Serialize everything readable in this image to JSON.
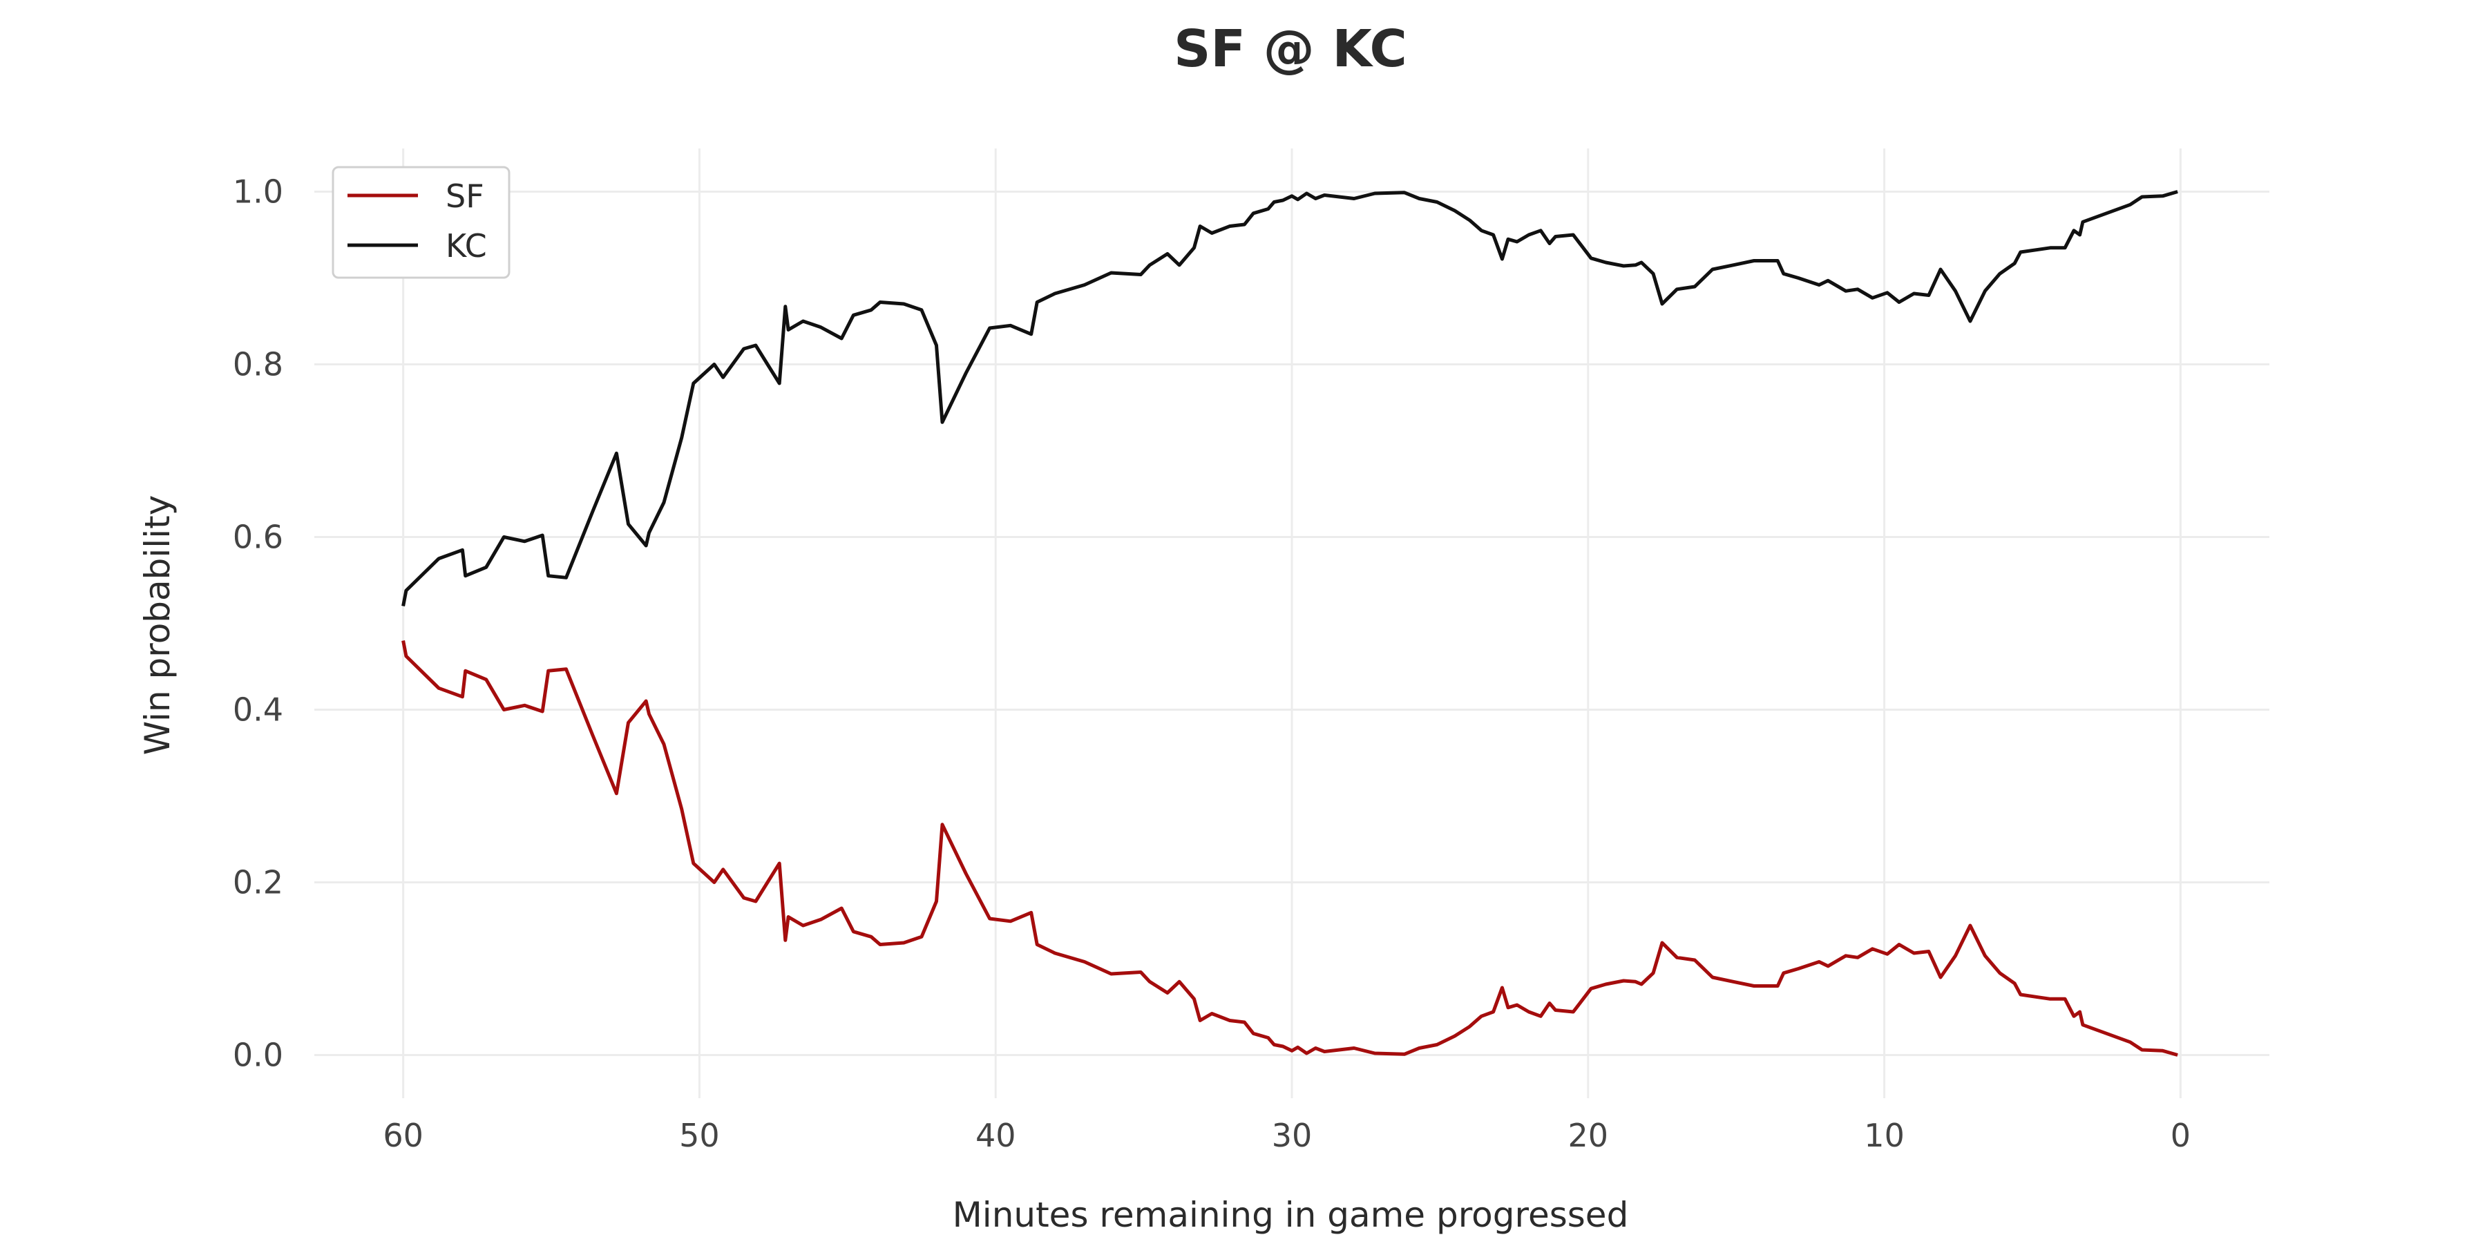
{
  "chart_data": {
    "type": "line",
    "title": "SF @ KC",
    "xlabel": "Minutes remaining in game progressed",
    "ylabel": "Win probability",
    "xlim": [
      63,
      -3
    ],
    "ylim": [
      -0.05,
      1.05
    ],
    "x_ticks": [
      60,
      50,
      40,
      30,
      20,
      10,
      0
    ],
    "x_tick_labels": [
      "60",
      "50",
      "40",
      "30",
      "20",
      "10",
      "0"
    ],
    "y_ticks": [
      0.0,
      0.2,
      0.4,
      0.6,
      0.8,
      1.0
    ],
    "y_tick_labels": [
      "0.0",
      "0.2",
      "0.4",
      "0.6",
      "0.8",
      "1.0"
    ],
    "grid": true,
    "legend": {
      "placement": "top-left",
      "entries": [
        "SF",
        "KC"
      ]
    },
    "series": [
      {
        "name": "SF",
        "color": "#a50d0d",
        "points": [
          [
            60,
            0.48
          ],
          [
            59.9,
            0.462
          ],
          [
            58.8,
            0.425
          ],
          [
            58.0,
            0.415
          ],
          [
            57.9,
            0.445
          ],
          [
            57.2,
            0.435
          ],
          [
            56.6,
            0.4
          ],
          [
            55.9,
            0.405
          ],
          [
            55.3,
            0.398
          ],
          [
            55.1,
            0.445
          ],
          [
            54.5,
            0.447
          ],
          [
            53.6,
            0.37
          ],
          [
            52.8,
            0.303
          ],
          [
            52.4,
            0.385
          ],
          [
            51.8,
            0.41
          ],
          [
            51.7,
            0.395
          ],
          [
            51.2,
            0.36
          ],
          [
            50.6,
            0.285
          ],
          [
            50.2,
            0.222
          ],
          [
            49.5,
            0.2
          ],
          [
            49.2,
            0.215
          ],
          [
            48.5,
            0.182
          ],
          [
            48.1,
            0.178
          ],
          [
            47.7,
            0.2
          ],
          [
            47.3,
            0.222
          ],
          [
            47.1,
            0.133
          ],
          [
            47.0,
            0.16
          ],
          [
            46.5,
            0.15
          ],
          [
            45.9,
            0.157
          ],
          [
            45.2,
            0.17
          ],
          [
            44.8,
            0.143
          ],
          [
            44.2,
            0.137
          ],
          [
            43.9,
            0.128
          ],
          [
            43.1,
            0.13
          ],
          [
            42.5,
            0.137
          ],
          [
            42.0,
            0.178
          ],
          [
            41.8,
            0.267
          ],
          [
            41.0,
            0.21
          ],
          [
            40.2,
            0.158
          ],
          [
            39.5,
            0.155
          ],
          [
            38.8,
            0.165
          ],
          [
            38.6,
            0.128
          ],
          [
            38.0,
            0.118
          ],
          [
            37.0,
            0.108
          ],
          [
            36.1,
            0.094
          ],
          [
            35.1,
            0.096
          ],
          [
            34.8,
            0.085
          ],
          [
            34.2,
            0.072
          ],
          [
            33.8,
            0.085
          ],
          [
            33.3,
            0.065
          ],
          [
            33.1,
            0.04
          ],
          [
            32.7,
            0.048
          ],
          [
            32.1,
            0.04
          ],
          [
            31.6,
            0.038
          ],
          [
            31.3,
            0.025
          ],
          [
            30.8,
            0.02
          ],
          [
            30.6,
            0.012
          ],
          [
            30.3,
            0.01
          ],
          [
            30.0,
            0.005
          ],
          [
            29.8,
            0.009
          ],
          [
            29.5,
            0.002
          ],
          [
            29.2,
            0.008
          ],
          [
            28.9,
            0.004
          ],
          [
            27.9,
            0.008
          ],
          [
            27.2,
            0.002
          ],
          [
            26.2,
            0.001
          ],
          [
            25.7,
            0.008
          ],
          [
            25.1,
            0.012
          ],
          [
            24.5,
            0.022
          ],
          [
            24.0,
            0.033
          ],
          [
            23.6,
            0.045
          ],
          [
            23.2,
            0.05
          ],
          [
            22.9,
            0.078
          ],
          [
            22.7,
            0.055
          ],
          [
            22.4,
            0.058
          ],
          [
            22.0,
            0.05
          ],
          [
            21.6,
            0.045
          ],
          [
            21.3,
            0.06
          ],
          [
            21.1,
            0.052
          ],
          [
            20.5,
            0.05
          ],
          [
            19.9,
            0.077
          ],
          [
            19.4,
            0.082
          ],
          [
            18.8,
            0.086
          ],
          [
            18.4,
            0.085
          ],
          [
            18.2,
            0.082
          ],
          [
            17.8,
            0.095
          ],
          [
            17.5,
            0.13
          ],
          [
            17.0,
            0.113
          ],
          [
            16.4,
            0.11
          ],
          [
            15.8,
            0.09
          ],
          [
            15.1,
            0.085
          ],
          [
            14.4,
            0.08
          ],
          [
            13.6,
            0.08
          ],
          [
            13.4,
            0.095
          ],
          [
            12.9,
            0.1
          ],
          [
            12.2,
            0.108
          ],
          [
            11.9,
            0.103
          ],
          [
            11.3,
            0.115
          ],
          [
            10.9,
            0.113
          ],
          [
            10.4,
            0.123
          ],
          [
            9.9,
            0.117
          ],
          [
            9.5,
            0.128
          ],
          [
            9.0,
            0.118
          ],
          [
            8.5,
            0.12
          ],
          [
            8.1,
            0.09
          ],
          [
            7.6,
            0.115
          ],
          [
            7.1,
            0.15
          ],
          [
            6.6,
            0.115
          ],
          [
            6.1,
            0.095
          ],
          [
            5.6,
            0.083
          ],
          [
            5.4,
            0.07
          ],
          [
            4.8,
            0.067
          ],
          [
            4.4,
            0.065
          ],
          [
            3.9,
            0.065
          ],
          [
            3.6,
            0.045
          ],
          [
            3.4,
            0.05
          ],
          [
            3.3,
            0.035
          ],
          [
            2.5,
            0.025
          ],
          [
            1.7,
            0.015
          ],
          [
            1.3,
            0.006
          ],
          [
            0.6,
            0.005
          ],
          [
            0.1,
            0.0
          ]
        ]
      },
      {
        "name": "KC",
        "color": "#111111",
        "points": [
          [
            60,
            0.52
          ],
          [
            59.9,
            0.538
          ],
          [
            58.8,
            0.575
          ],
          [
            58.0,
            0.585
          ],
          [
            57.9,
            0.555
          ],
          [
            57.2,
            0.565
          ],
          [
            56.6,
            0.6
          ],
          [
            55.9,
            0.595
          ],
          [
            55.3,
            0.602
          ],
          [
            55.1,
            0.555
          ],
          [
            54.5,
            0.553
          ],
          [
            53.6,
            0.63
          ],
          [
            52.8,
            0.697
          ],
          [
            52.4,
            0.615
          ],
          [
            51.8,
            0.59
          ],
          [
            51.7,
            0.605
          ],
          [
            51.2,
            0.64
          ],
          [
            50.6,
            0.715
          ],
          [
            50.2,
            0.778
          ],
          [
            49.5,
            0.8
          ],
          [
            49.2,
            0.785
          ],
          [
            48.5,
            0.818
          ],
          [
            48.1,
            0.822
          ],
          [
            47.7,
            0.8
          ],
          [
            47.3,
            0.778
          ],
          [
            47.1,
            0.867
          ],
          [
            47.0,
            0.84
          ],
          [
            46.5,
            0.85
          ],
          [
            45.9,
            0.843
          ],
          [
            45.2,
            0.83
          ],
          [
            44.8,
            0.857
          ],
          [
            44.2,
            0.863
          ],
          [
            43.9,
            0.872
          ],
          [
            43.1,
            0.87
          ],
          [
            42.5,
            0.863
          ],
          [
            42.0,
            0.822
          ],
          [
            41.8,
            0.733
          ],
          [
            41.0,
            0.79
          ],
          [
            40.2,
            0.842
          ],
          [
            39.5,
            0.845
          ],
          [
            38.8,
            0.835
          ],
          [
            38.6,
            0.872
          ],
          [
            38.0,
            0.882
          ],
          [
            37.0,
            0.892
          ],
          [
            36.1,
            0.906
          ],
          [
            35.1,
            0.904
          ],
          [
            34.8,
            0.915
          ],
          [
            34.2,
            0.928
          ],
          [
            33.8,
            0.915
          ],
          [
            33.3,
            0.935
          ],
          [
            33.1,
            0.96
          ],
          [
            32.7,
            0.952
          ],
          [
            32.1,
            0.96
          ],
          [
            31.6,
            0.962
          ],
          [
            31.3,
            0.975
          ],
          [
            30.8,
            0.98
          ],
          [
            30.6,
            0.988
          ],
          [
            30.3,
            0.99
          ],
          [
            30.0,
            0.995
          ],
          [
            29.8,
            0.991
          ],
          [
            29.5,
            0.998
          ],
          [
            29.2,
            0.992
          ],
          [
            28.9,
            0.996
          ],
          [
            27.9,
            0.992
          ],
          [
            27.2,
            0.998
          ],
          [
            26.2,
            0.999
          ],
          [
            25.7,
            0.992
          ],
          [
            25.1,
            0.988
          ],
          [
            24.5,
            0.978
          ],
          [
            24.0,
            0.967
          ],
          [
            23.6,
            0.955
          ],
          [
            23.2,
            0.95
          ],
          [
            22.9,
            0.922
          ],
          [
            22.7,
            0.945
          ],
          [
            22.4,
            0.942
          ],
          [
            22.0,
            0.95
          ],
          [
            21.6,
            0.955
          ],
          [
            21.3,
            0.94
          ],
          [
            21.1,
            0.948
          ],
          [
            20.5,
            0.95
          ],
          [
            19.9,
            0.923
          ],
          [
            19.4,
            0.918
          ],
          [
            18.8,
            0.914
          ],
          [
            18.4,
            0.915
          ],
          [
            18.2,
            0.918
          ],
          [
            17.8,
            0.905
          ],
          [
            17.5,
            0.87
          ],
          [
            17.0,
            0.887
          ],
          [
            16.4,
            0.89
          ],
          [
            15.8,
            0.91
          ],
          [
            15.1,
            0.915
          ],
          [
            14.4,
            0.92
          ],
          [
            13.6,
            0.92
          ],
          [
            13.4,
            0.905
          ],
          [
            12.9,
            0.9
          ],
          [
            12.2,
            0.892
          ],
          [
            11.9,
            0.897
          ],
          [
            11.3,
            0.885
          ],
          [
            10.9,
            0.887
          ],
          [
            10.4,
            0.877
          ],
          [
            9.9,
            0.883
          ],
          [
            9.5,
            0.872
          ],
          [
            9.0,
            0.882
          ],
          [
            8.5,
            0.88
          ],
          [
            8.1,
            0.91
          ],
          [
            7.6,
            0.885
          ],
          [
            7.1,
            0.85
          ],
          [
            6.6,
            0.885
          ],
          [
            6.1,
            0.905
          ],
          [
            5.6,
            0.917
          ],
          [
            5.4,
            0.93
          ],
          [
            4.8,
            0.933
          ],
          [
            4.4,
            0.935
          ],
          [
            3.9,
            0.935
          ],
          [
            3.6,
            0.955
          ],
          [
            3.4,
            0.95
          ],
          [
            3.3,
            0.965
          ],
          [
            2.5,
            0.975
          ],
          [
            1.7,
            0.985
          ],
          [
            1.3,
            0.994
          ],
          [
            0.6,
            0.995
          ],
          [
            0.1,
            1.0
          ]
        ]
      }
    ]
  }
}
